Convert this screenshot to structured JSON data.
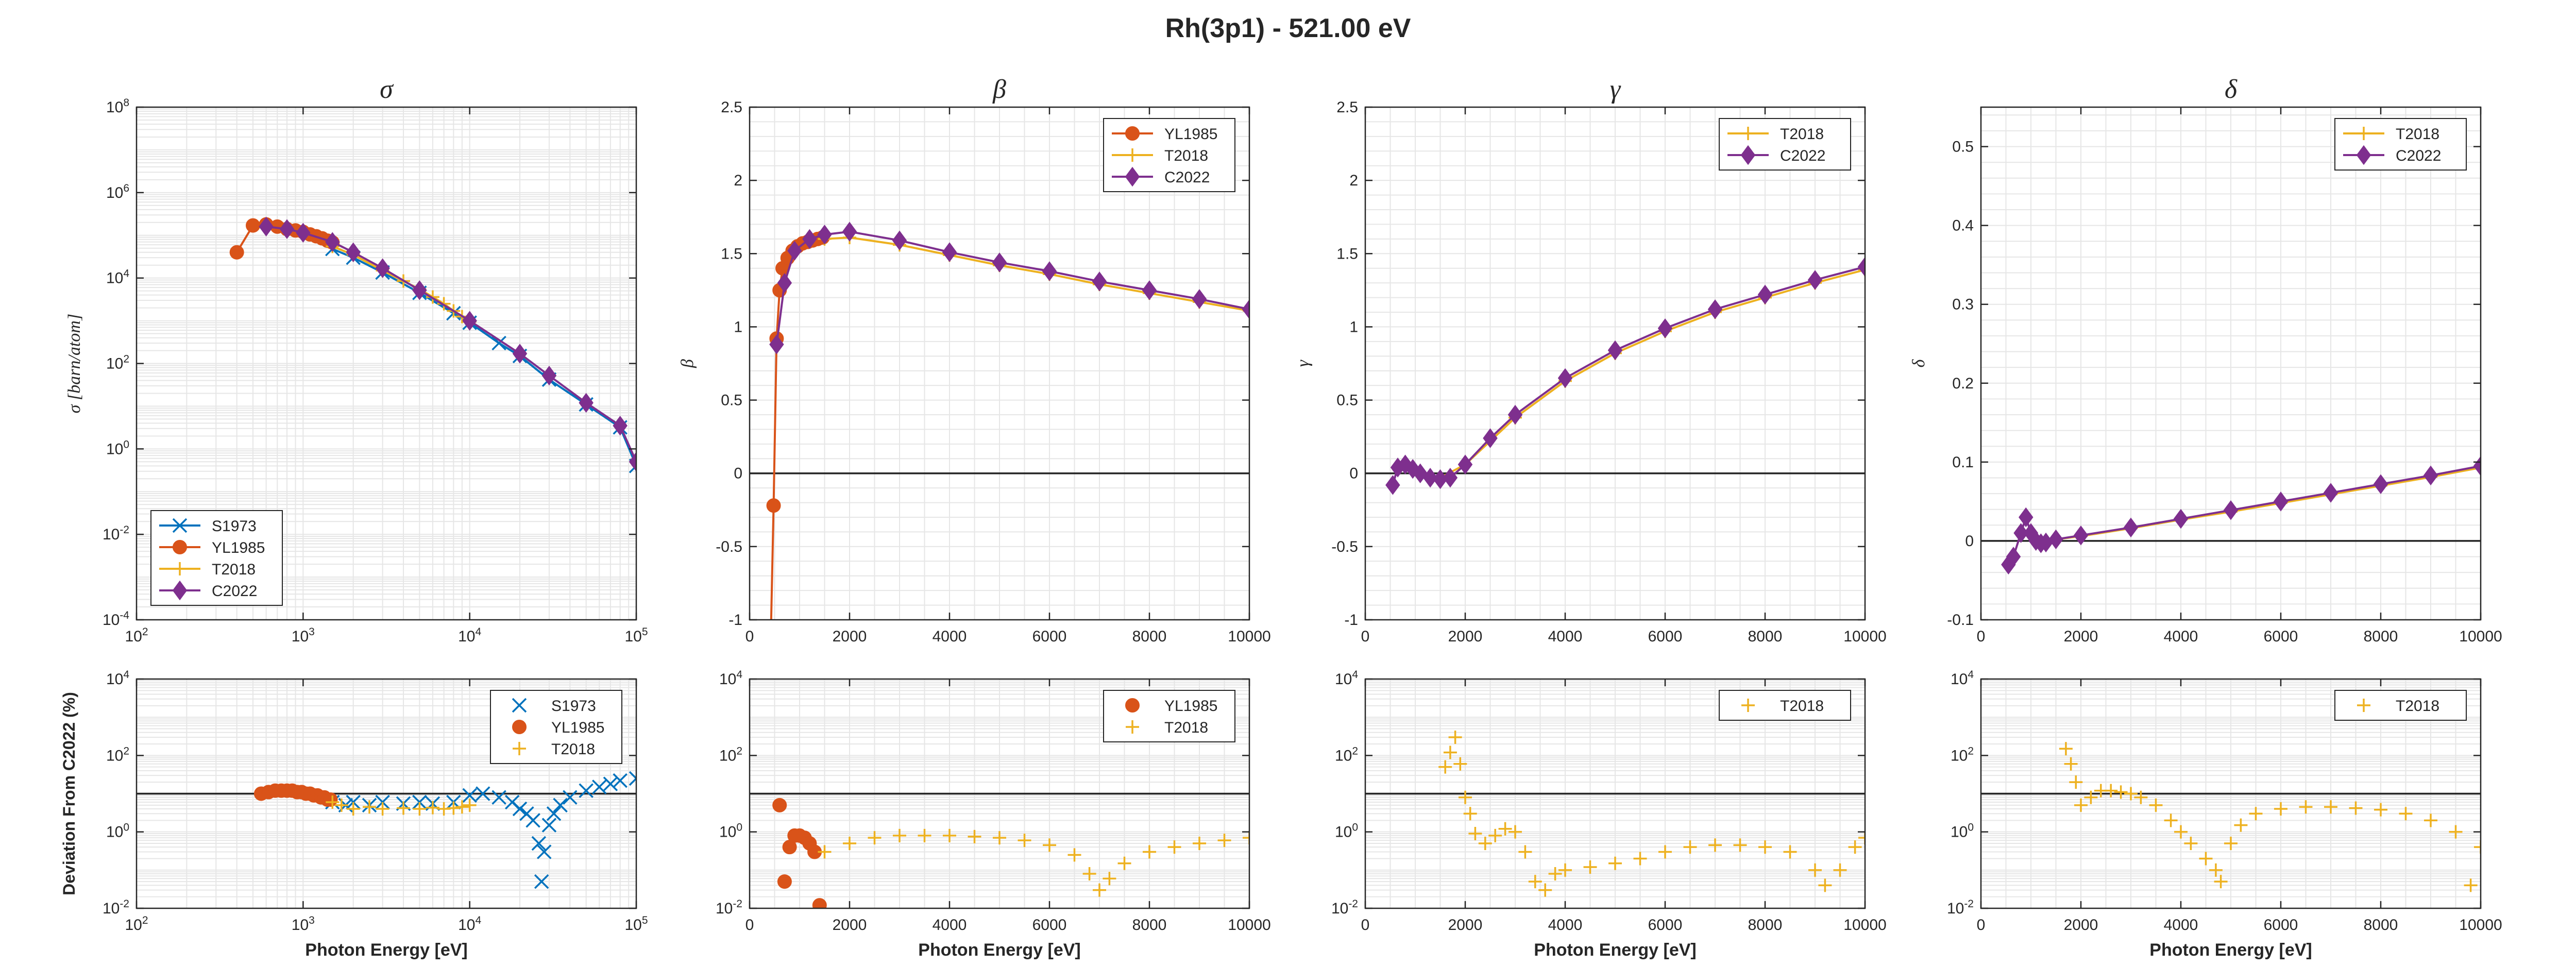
{
  "figure": {
    "title": "Rh(3p1) - 521.00 eV"
  },
  "colors": {
    "S1973": "#0072BD",
    "YL1985": "#D95319",
    "T2018": "#EDB120",
    "C2022": "#7E2F8E",
    "axis": "#262626",
    "grid": "#e6e6e6",
    "zeroline": "#262626"
  },
  "chart_data": [
    {
      "id": "sigma-top",
      "type": "line",
      "title": "σ",
      "xlabel": "",
      "ylabel": "σ [barn/atom]",
      "xscale": "log",
      "yscale": "log",
      "xlim": [
        100,
        100000
      ],
      "ylim": [
        0.0001,
        100000000
      ],
      "xticks": [
        100,
        1000,
        10000,
        100000
      ],
      "xticklabels": [
        "10^2",
        "10^3",
        "10^4",
        "10^5"
      ],
      "yticks": [
        0.0001,
        0.01,
        1,
        100,
        10000,
        1000000,
        100000000
      ],
      "yticklabels": [
        "10^-4",
        "10^-2",
        "10^0",
        "10^2",
        "10^4",
        "10^6",
        "10^8"
      ],
      "legend": {
        "position": "bottom-left",
        "entries": [
          "S1973",
          "YL1985",
          "T2018",
          "C2022"
        ]
      },
      "series": [
        {
          "name": "S1973",
          "marker": "x",
          "x": [
            1500,
            2000,
            3000,
            5000,
            8000,
            10000,
            15000,
            20000,
            30000,
            50000,
            80000,
            100000
          ],
          "y": [
            48000,
            30000,
            13500,
            4500,
            1500,
            900,
            300,
            150,
            42,
            11,
            3.2,
            0.4
          ]
        },
        {
          "name": "YL1985",
          "marker": "o",
          "x": [
            400,
            500,
            600,
            700,
            800,
            900,
            1000,
            1100,
            1200,
            1300,
            1400,
            1500
          ],
          "y": [
            40000,
            170000,
            180000,
            160000,
            140000,
            130000,
            120000,
            105000,
            95000,
            85000,
            75000,
            68000
          ]
        },
        {
          "name": "T2018",
          "marker": "+",
          "x": [
            1500,
            2000,
            3000,
            4000,
            5000,
            6000,
            7000,
            8000,
            9000,
            10000
          ],
          "y": [
            55000,
            35000,
            15000,
            8500,
            5500,
            3600,
            2500,
            1700,
            1250,
            950
          ]
        },
        {
          "name": "C2022",
          "marker": "d",
          "x": [
            600,
            800,
            1000,
            1500,
            2000,
            3000,
            5000,
            10000,
            20000,
            30000,
            50000,
            80000,
            100000
          ],
          "y": [
            160000,
            140000,
            115000,
            70000,
            40000,
            17000,
            5200,
            1000,
            170,
            52,
            12,
            3.5,
            0.5
          ]
        }
      ]
    },
    {
      "id": "beta-top",
      "type": "line",
      "title": "β",
      "xlabel": "",
      "ylabel": "β",
      "xscale": "linear",
      "yscale": "linear",
      "xlim": [
        0,
        10000
      ],
      "ylim": [
        -1,
        2.5
      ],
      "xticks": [
        0,
        2000,
        4000,
        6000,
        8000,
        10000
      ],
      "xticklabels": [
        "0",
        "2000",
        "4000",
        "6000",
        "8000",
        "10000"
      ],
      "yticks": [
        -1,
        -0.5,
        0,
        0.5,
        1,
        1.5,
        2,
        2.5
      ],
      "yticklabels": [
        "-1",
        "-0.5",
        "0",
        "0.5",
        "1",
        "1.5",
        "2",
        "2.5"
      ],
      "legend": {
        "position": "top-right",
        "entries": [
          "YL1985",
          "T2018",
          "C2022"
        ]
      },
      "series": [
        {
          "name": "YL1985",
          "marker": "o",
          "x": [
            400,
            480,
            540,
            600,
            660,
            760,
            860,
            960,
            1060,
            1160,
            1260,
            1360,
            1460
          ],
          "y": [
            -1.5,
            -0.22,
            0.92,
            1.25,
            1.4,
            1.47,
            1.52,
            1.55,
            1.57,
            1.58,
            1.59,
            1.6,
            1.61
          ]
        },
        {
          "name": "T2018",
          "marker": "+",
          "x": [
            1500,
            2000,
            3000,
            4000,
            5000,
            6000,
            7000,
            8000,
            9000,
            10000
          ],
          "y": [
            1.6,
            1.61,
            1.56,
            1.49,
            1.42,
            1.36,
            1.29,
            1.23,
            1.17,
            1.11
          ]
        },
        {
          "name": "C2022",
          "marker": "d",
          "x": [
            540,
            700,
            900,
            1200,
            1500,
            2000,
            3000,
            4000,
            5000,
            6000,
            7000,
            8000,
            9000,
            10000
          ],
          "y": [
            0.88,
            1.3,
            1.52,
            1.6,
            1.63,
            1.65,
            1.59,
            1.51,
            1.44,
            1.38,
            1.31,
            1.25,
            1.19,
            1.12
          ]
        }
      ]
    },
    {
      "id": "gamma-top",
      "type": "line",
      "title": "γ",
      "xlabel": "",
      "ylabel": "γ",
      "xscale": "linear",
      "yscale": "linear",
      "xlim": [
        0,
        10000
      ],
      "ylim": [
        -1,
        2.5
      ],
      "xticks": [
        0,
        2000,
        4000,
        6000,
        8000,
        10000
      ],
      "xticklabels": [
        "0",
        "2000",
        "4000",
        "6000",
        "8000",
        "10000"
      ],
      "yticks": [
        -1,
        -0.5,
        0,
        0.5,
        1,
        1.5,
        2,
        2.5
      ],
      "yticklabels": [
        "-1",
        "-0.5",
        "0",
        "0.5",
        "1",
        "1.5",
        "2",
        "2.5"
      ],
      "legend": {
        "position": "top-right",
        "entries": [
          "T2018",
          "C2022"
        ]
      },
      "series": [
        {
          "name": "T2018",
          "marker": "+",
          "x": [
            1500,
            2000,
            3000,
            4000,
            5000,
            6000,
            7000,
            8000,
            9000,
            10000
          ],
          "y": [
            -0.03,
            0.06,
            0.38,
            0.63,
            0.82,
            0.97,
            1.1,
            1.2,
            1.3,
            1.39
          ]
        },
        {
          "name": "C2022",
          "marker": "d",
          "x": [
            550,
            650,
            800,
            950,
            1100,
            1300,
            1500,
            1700,
            2000,
            2500,
            3000,
            4000,
            5000,
            6000,
            7000,
            8000,
            9000,
            10000
          ],
          "y": [
            -0.08,
            0.04,
            0.06,
            0.03,
            0.0,
            -0.03,
            -0.04,
            -0.03,
            0.06,
            0.24,
            0.4,
            0.65,
            0.84,
            0.99,
            1.12,
            1.22,
            1.32,
            1.41
          ]
        }
      ]
    },
    {
      "id": "delta-top",
      "type": "line",
      "title": "δ",
      "xlabel": "",
      "ylabel": "δ",
      "xscale": "linear",
      "yscale": "linear",
      "xlim": [
        0,
        10000
      ],
      "ylim": [
        -0.1,
        0.55
      ],
      "xticks": [
        0,
        2000,
        4000,
        6000,
        8000,
        10000
      ],
      "xticklabels": [
        "0",
        "2000",
        "4000",
        "6000",
        "8000",
        "10000"
      ],
      "yticks": [
        -0.1,
        0,
        0.1,
        0.2,
        0.3,
        0.4,
        0.5
      ],
      "yticklabels": [
        "-0.1",
        "0",
        "0.1",
        "0.2",
        "0.3",
        "0.4",
        "0.5"
      ],
      "legend": {
        "position": "top-right",
        "entries": [
          "T2018",
          "C2022"
        ]
      },
      "series": [
        {
          "name": "T2018",
          "marker": "+",
          "x": [
            1500,
            2000,
            3000,
            4000,
            5000,
            6000,
            7000,
            8000,
            9000,
            10000
          ],
          "y": [
            0.002,
            0.006,
            0.016,
            0.027,
            0.037,
            0.048,
            0.059,
            0.07,
            0.081,
            0.093
          ]
        },
        {
          "name": "C2022",
          "marker": "d",
          "x": [
            550,
            650,
            800,
            900,
            1000,
            1100,
            1200,
            1300,
            1500,
            2000,
            3000,
            4000,
            5000,
            6000,
            7000,
            8000,
            9000,
            10000
          ],
          "y": [
            -0.03,
            -0.02,
            0.01,
            0.03,
            0.01,
            0.0,
            -0.003,
            -0.002,
            0.002,
            0.007,
            0.017,
            0.028,
            0.039,
            0.05,
            0.061,
            0.072,
            0.083,
            0.095
          ]
        }
      ]
    },
    {
      "id": "sigma-dev",
      "type": "scatter",
      "title": "",
      "xlabel": "Photon Energy [eV]",
      "ylabel": "Deviation From C2022 (%)",
      "xscale": "log",
      "yscale": "log",
      "xlim": [
        100,
        100000
      ],
      "ylim": [
        0.01,
        10000
      ],
      "xticks": [
        100,
        1000,
        10000,
        100000
      ],
      "xticklabels": [
        "10^2",
        "10^3",
        "10^4",
        "10^5"
      ],
      "yticks": [
        0.01,
        1,
        100,
        10000
      ],
      "yticklabels": [
        "10^-2",
        "10^0",
        "10^2",
        "10^4"
      ],
      "refline": 10,
      "legend": {
        "position": "top-right",
        "entries": [
          "S1973",
          "YL1985",
          "T2018"
        ]
      },
      "series": [
        {
          "name": "S1973",
          "marker": "x",
          "x": [
            1500,
            1800,
            2000,
            2500,
            3000,
            4000,
            5000,
            6000,
            8000,
            10000,
            12000,
            15000,
            18000,
            20000,
            22000,
            24000,
            26000,
            27000,
            28000,
            30000,
            32000,
            35000,
            40000,
            50000,
            60000,
            70000,
            80000,
            100000
          ],
          "y": [
            6,
            5,
            6,
            5,
            6,
            5.5,
            6,
            5.5,
            6,
            9,
            10,
            8,
            6,
            4,
            3,
            2,
            0.5,
            0.05,
            0.3,
            1.5,
            3,
            5,
            8,
            12,
            15,
            18,
            22,
            25
          ]
        },
        {
          "name": "YL1985",
          "marker": "o",
          "x": [
            560,
            620,
            680,
            740,
            800,
            860,
            920,
            980,
            1040,
            1100,
            1160,
            1220,
            1280,
            1340,
            1400,
            1460
          ],
          "y": [
            10,
            11,
            12,
            12,
            12,
            12,
            11,
            11,
            10,
            10,
            9,
            9,
            8,
            8,
            7,
            7
          ]
        },
        {
          "name": "T2018",
          "marker": "+",
          "x": [
            1500,
            1700,
            2000,
            2500,
            3000,
            4000,
            5000,
            6000,
            7000,
            8000,
            9000,
            10000
          ],
          "y": [
            6,
            5,
            4,
            4.5,
            4,
            4.2,
            4,
            4.3,
            4,
            4.2,
            4.5,
            5
          ]
        }
      ]
    },
    {
      "id": "beta-dev",
      "type": "scatter",
      "title": "",
      "xlabel": "Photon Energy [eV]",
      "ylabel": "",
      "xscale": "linear",
      "yscale": "log",
      "xlim": [
        0,
        10000
      ],
      "ylim": [
        0.01,
        10000
      ],
      "xticks": [
        0,
        2000,
        4000,
        6000,
        8000,
        10000
      ],
      "xticklabels": [
        "0",
        "2000",
        "4000",
        "6000",
        "8000",
        "10000"
      ],
      "yticks": [
        0.01,
        1,
        100,
        10000
      ],
      "yticklabels": [
        "10^-2",
        "10^0",
        "10^2",
        "10^4"
      ],
      "refline": 10,
      "legend": {
        "position": "top-right",
        "entries": [
          "YL1985",
          "T2018"
        ]
      },
      "series": [
        {
          "name": "YL1985",
          "marker": "o",
          "x": [
            600,
            700,
            800,
            900,
            1000,
            1100,
            1200,
            1300,
            1400
          ],
          "y": [
            5,
            0.05,
            0.4,
            0.8,
            0.8,
            0.7,
            0.5,
            0.3,
            0.012
          ]
        },
        {
          "name": "T2018",
          "marker": "+",
          "x": [
            1500,
            2000,
            2500,
            3000,
            3500,
            4000,
            4500,
            5000,
            5500,
            6000,
            6500,
            6800,
            7000,
            7200,
            7500,
            8000,
            8500,
            9000,
            9500,
            10000
          ],
          "y": [
            0.3,
            0.5,
            0.7,
            0.8,
            0.8,
            0.8,
            0.75,
            0.7,
            0.6,
            0.45,
            0.25,
            0.08,
            0.03,
            0.06,
            0.15,
            0.3,
            0.4,
            0.5,
            0.6,
            0.7
          ]
        }
      ]
    },
    {
      "id": "gamma-dev",
      "type": "scatter",
      "title": "",
      "xlabel": "Photon Energy [eV]",
      "ylabel": "",
      "xscale": "linear",
      "yscale": "log",
      "xlim": [
        0,
        10000
      ],
      "ylim": [
        0.01,
        10000
      ],
      "xticks": [
        0,
        2000,
        4000,
        6000,
        8000,
        10000
      ],
      "xticklabels": [
        "0",
        "2000",
        "4000",
        "6000",
        "8000",
        "10000"
      ],
      "yticks": [
        0.01,
        1,
        100,
        10000
      ],
      "yticklabels": [
        "10^-2",
        "10^0",
        "10^2",
        "10^4"
      ],
      "refline": 10,
      "legend": {
        "position": "top-right",
        "entries": [
          "T2018"
        ]
      },
      "series": [
        {
          "name": "T2018",
          "marker": "+",
          "x": [
            1600,
            1700,
            1800,
            1900,
            2000,
            2100,
            2200,
            2400,
            2600,
            2800,
            3000,
            3200,
            3400,
            3600,
            3800,
            4000,
            4500,
            5000,
            5500,
            6000,
            6500,
            7000,
            7500,
            8000,
            8500,
            9000,
            9200,
            9500,
            9800,
            10000
          ],
          "y": [
            50,
            120,
            300,
            60,
            8,
            3,
            0.9,
            0.5,
            0.8,
            1.2,
            1.0,
            0.3,
            0.05,
            0.03,
            0.08,
            0.1,
            0.12,
            0.15,
            0.2,
            0.3,
            0.4,
            0.45,
            0.45,
            0.4,
            0.3,
            0.1,
            0.04,
            0.1,
            0.4,
            0.7
          ]
        }
      ]
    },
    {
      "id": "delta-dev",
      "type": "scatter",
      "title": "",
      "xlabel": "Photon Energy [eV]",
      "ylabel": "",
      "xscale": "linear",
      "yscale": "log",
      "xlim": [
        0,
        10000
      ],
      "ylim": [
        0.01,
        10000
      ],
      "xticks": [
        0,
        2000,
        4000,
        6000,
        8000,
        10000
      ],
      "xticklabels": [
        "0",
        "2000",
        "4000",
        "6000",
        "8000",
        "10000"
      ],
      "yticks": [
        0.01,
        1,
        100,
        10000
      ],
      "yticklabels": [
        "10^-2",
        "10^0",
        "10^2",
        "10^4"
      ],
      "refline": 10,
      "legend": {
        "position": "top-right",
        "entries": [
          "T2018"
        ]
      },
      "series": [
        {
          "name": "T2018",
          "marker": "+",
          "x": [
            1700,
            1800,
            1900,
            2000,
            2200,
            2400,
            2600,
            2800,
            3000,
            3200,
            3500,
            3800,
            4000,
            4200,
            4500,
            4700,
            4800,
            5000,
            5200,
            5500,
            6000,
            6500,
            7000,
            7500,
            8000,
            8500,
            9000,
            9500,
            9800,
            10000
          ],
          "y": [
            150,
            60,
            20,
            5,
            8,
            12,
            12,
            11,
            10,
            8,
            5,
            2,
            1,
            0.5,
            0.2,
            0.1,
            0.05,
            0.5,
            1.5,
            3,
            4,
            4.5,
            4.5,
            4.2,
            3.8,
            3,
            2,
            1,
            0.04,
            0.4
          ]
        }
      ]
    }
  ]
}
